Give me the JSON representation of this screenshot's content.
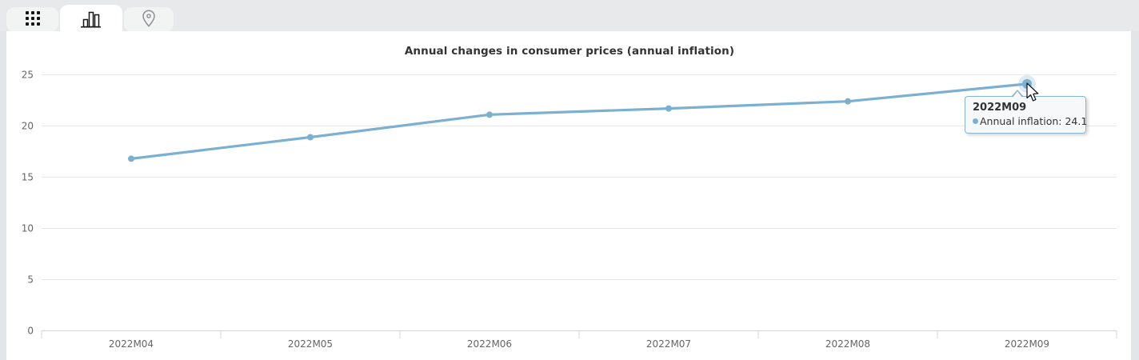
{
  "tabs": [
    {
      "id": "table",
      "icon": "grid-icon",
      "active": false
    },
    {
      "id": "chart",
      "icon": "bar-chart-icon",
      "active": true
    },
    {
      "id": "map",
      "icon": "map-pin-icon",
      "active": false
    }
  ],
  "chart_data": {
    "type": "line",
    "title": "Annual changes in consumer prices (annual inflation)",
    "categories": [
      "2022M04",
      "2022M05",
      "2022M06",
      "2022M07",
      "2022M08",
      "2022M09"
    ],
    "series": [
      {
        "name": "Annual inflation",
        "values": [
          16.8,
          18.9,
          21.1,
          21.7,
          22.4,
          24.1
        ]
      }
    ],
    "xlabel": "",
    "ylabel": "",
    "ylim": [
      0,
      25
    ],
    "yticks": [
      0,
      5,
      10,
      15,
      20,
      25
    ],
    "grid": true,
    "legend": "none",
    "line_color": "#7cb0d0",
    "grid_color": "#e6e6e6",
    "axis_color": "#ccd6eb",
    "label_color": "#666666",
    "hovered_point": {
      "category": "2022M09",
      "value": 24.1
    }
  },
  "tooltip": {
    "header": "2022M09",
    "text": "Annual inflation: 24.1"
  }
}
